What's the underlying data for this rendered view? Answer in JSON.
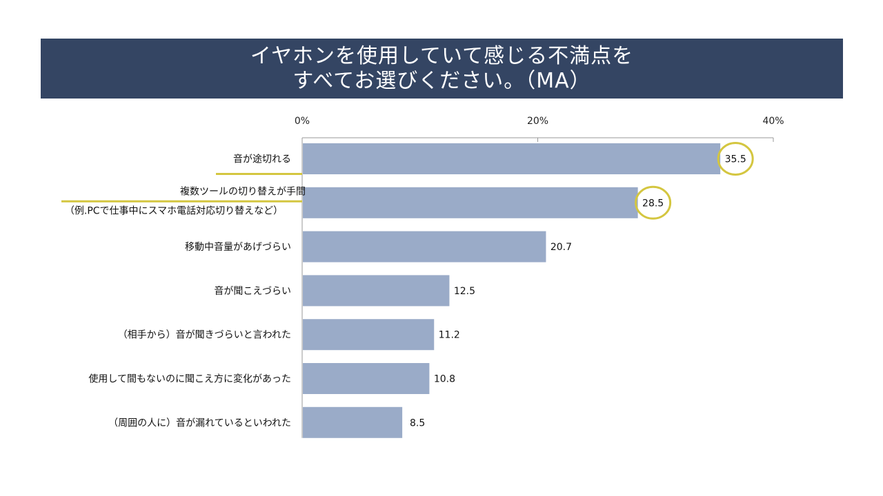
{
  "title": {
    "line1": "イヤホンを使用していて感じる不満点を",
    "line2": "すべてお選びください。（MA）"
  },
  "colors": {
    "title_band": "#344563",
    "bar": "#9aabc8",
    "highlight": "#d4c640",
    "axis": "#999999"
  },
  "chart_data": {
    "type": "bar",
    "orientation": "horizontal",
    "title": "イヤホンを使用していて感じる不満点を すべてお選びください。（MA）",
    "xlabel": "",
    "ylabel": "",
    "xlim": [
      0,
      40
    ],
    "ticks": [
      "0%",
      "20%",
      "40%"
    ],
    "tick_values": [
      0,
      20,
      40
    ],
    "grid": false,
    "categories": [
      [
        "音が途切れる"
      ],
      [
        "複数ツールの切り替えが手間",
        "（例.PCで仕事中にスマホ電話対応切り替えなど）"
      ],
      [
        "移動中音量があげづらい"
      ],
      [
        "音が聞こえづらい"
      ],
      [
        "（相手から）音が聞きづらいと言われた"
      ],
      [
        "使用して間もないのに聞こえ方に変化があった"
      ],
      [
        "（周囲の人に）音が漏れているといわれた"
      ]
    ],
    "values": [
      35.5,
      28.5,
      20.7,
      12.5,
      11.2,
      10.8,
      8.5
    ],
    "value_labels": [
      "35.5",
      "28.5",
      "20.7",
      "12.5",
      "11.2",
      "10.8",
      "8.5"
    ],
    "highlighted": [
      0,
      1
    ]
  }
}
